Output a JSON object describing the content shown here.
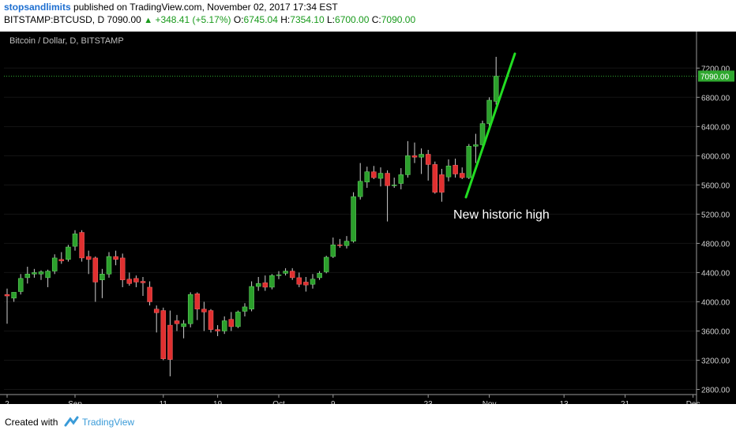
{
  "header": {
    "author": "stopsandlimits",
    "published_text": "published on TradingView.com, November 02, 2017 17:34 EST",
    "symbol": "BITSTAMP:BTCUSD, D",
    "last_price": "7090.00",
    "change": "+348.41 (+5.17%)",
    "o_label": "O:",
    "o_value": "6745.04",
    "h_label": "H:",
    "h_value": "7354.10",
    "l_label": "L:",
    "l_value": "6700.00",
    "c_label": "C:",
    "c_value": "7090.00"
  },
  "chart_title": "Bitcoin / Dollar, D, BITSTAMP",
  "annotation": "New historic high",
  "footer": {
    "created_with": "Created with",
    "brand": "TradingView"
  },
  "colors": {
    "background": "#000000",
    "up": "#2ca02c",
    "down": "#e03030",
    "wick": "#cfcfcf",
    "trendline": "#22dd22",
    "price_line": "#2fa82f"
  },
  "chart_data": {
    "type": "candlestick",
    "title": "Bitcoin / Dollar, D, BITSTAMP",
    "y_ticks": [
      "7200.00",
      "6800.00",
      "6400.00",
      "6000.00",
      "5600.00",
      "5200.00",
      "4800.00",
      "4400.00",
      "4000.00",
      "3600.00",
      "3200.00",
      "2800.00"
    ],
    "x_ticks": [
      "2",
      "Sep",
      "11",
      "19",
      "Oct",
      "9",
      "23",
      "Nov",
      "13",
      "21",
      "Dec"
    ],
    "current_price_label": "7090.00",
    "ylim": [
      2730,
      7700
    ],
    "candles": [
      {
        "o": 4100,
        "h": 4180,
        "l": 3700,
        "c": 4080
      },
      {
        "o": 4050,
        "h": 4130,
        "l": 4000,
        "c": 4130
      },
      {
        "o": 4140,
        "h": 4380,
        "l": 4100,
        "c": 4320
      },
      {
        "o": 4330,
        "h": 4480,
        "l": 4250,
        "c": 4380
      },
      {
        "o": 4380,
        "h": 4450,
        "l": 4330,
        "c": 4400
      },
      {
        "o": 4380,
        "h": 4430,
        "l": 4300,
        "c": 4410
      },
      {
        "o": 4330,
        "h": 4440,
        "l": 4200,
        "c": 4420
      },
      {
        "o": 4420,
        "h": 4650,
        "l": 4380,
        "c": 4600
      },
      {
        "o": 4580,
        "h": 4680,
        "l": 4520,
        "c": 4560
      },
      {
        "o": 4580,
        "h": 4780,
        "l": 4550,
        "c": 4750
      },
      {
        "o": 4760,
        "h": 4980,
        "l": 4700,
        "c": 4930
      },
      {
        "o": 4950,
        "h": 4980,
        "l": 4550,
        "c": 4600
      },
      {
        "o": 4620,
        "h": 4700,
        "l": 4380,
        "c": 4580
      },
      {
        "o": 4600,
        "h": 4620,
        "l": 4000,
        "c": 4270
      },
      {
        "o": 4300,
        "h": 4450,
        "l": 4050,
        "c": 4380
      },
      {
        "o": 4380,
        "h": 4680,
        "l": 4330,
        "c": 4620
      },
      {
        "o": 4620,
        "h": 4700,
        "l": 4500,
        "c": 4580
      },
      {
        "o": 4600,
        "h": 4660,
        "l": 4200,
        "c": 4300
      },
      {
        "o": 4310,
        "h": 4400,
        "l": 4220,
        "c": 4250
      },
      {
        "o": 4320,
        "h": 4360,
        "l": 4200,
        "c": 4270
      },
      {
        "o": 4280,
        "h": 4340,
        "l": 4080,
        "c": 4260
      },
      {
        "o": 4200,
        "h": 4280,
        "l": 3950,
        "c": 4000
      },
      {
        "o": 3900,
        "h": 3950,
        "l": 3580,
        "c": 3850
      },
      {
        "o": 3880,
        "h": 3920,
        "l": 3200,
        "c": 3220
      },
      {
        "o": 3680,
        "h": 3880,
        "l": 2980,
        "c": 3210
      },
      {
        "o": 3740,
        "h": 3820,
        "l": 3600,
        "c": 3700
      },
      {
        "o": 3660,
        "h": 3750,
        "l": 3500,
        "c": 3700
      },
      {
        "o": 3700,
        "h": 4130,
        "l": 3650,
        "c": 4100
      },
      {
        "o": 4110,
        "h": 4130,
        "l": 3750,
        "c": 3900
      },
      {
        "o": 3900,
        "h": 4000,
        "l": 3600,
        "c": 3860
      },
      {
        "o": 3880,
        "h": 3900,
        "l": 3580,
        "c": 3620
      },
      {
        "o": 3620,
        "h": 3680,
        "l": 3530,
        "c": 3600
      },
      {
        "o": 3600,
        "h": 3800,
        "l": 3560,
        "c": 3740
      },
      {
        "o": 3760,
        "h": 3860,
        "l": 3600,
        "c": 3660
      },
      {
        "o": 3660,
        "h": 3880,
        "l": 3640,
        "c": 3860
      },
      {
        "o": 3870,
        "h": 3980,
        "l": 3800,
        "c": 3930
      },
      {
        "o": 3900,
        "h": 4280,
        "l": 3870,
        "c": 4210
      },
      {
        "o": 4210,
        "h": 4340,
        "l": 4150,
        "c": 4250
      },
      {
        "o": 4260,
        "h": 4360,
        "l": 4150,
        "c": 4200
      },
      {
        "o": 4200,
        "h": 4380,
        "l": 4170,
        "c": 4360
      },
      {
        "o": 4370,
        "h": 4420,
        "l": 4310,
        "c": 4370
      },
      {
        "o": 4390,
        "h": 4460,
        "l": 4360,
        "c": 4420
      },
      {
        "o": 4420,
        "h": 4460,
        "l": 4300,
        "c": 4330
      },
      {
        "o": 4330,
        "h": 4400,
        "l": 4200,
        "c": 4240
      },
      {
        "o": 4270,
        "h": 4340,
        "l": 4140,
        "c": 4230
      },
      {
        "o": 4240,
        "h": 4380,
        "l": 4180,
        "c": 4310
      },
      {
        "o": 4330,
        "h": 4420,
        "l": 4300,
        "c": 4390
      },
      {
        "o": 4410,
        "h": 4630,
        "l": 4390,
        "c": 4610
      },
      {
        "o": 4620,
        "h": 4880,
        "l": 4600,
        "c": 4780
      },
      {
        "o": 4780,
        "h": 4860,
        "l": 4740,
        "c": 4770
      },
      {
        "o": 4770,
        "h": 4900,
        "l": 4730,
        "c": 4830
      },
      {
        "o": 4830,
        "h": 5500,
        "l": 4810,
        "c": 5440
      },
      {
        "o": 5440,
        "h": 5900,
        "l": 5400,
        "c": 5650
      },
      {
        "o": 5640,
        "h": 5850,
        "l": 5560,
        "c": 5780
      },
      {
        "o": 5780,
        "h": 5860,
        "l": 5680,
        "c": 5700
      },
      {
        "o": 5690,
        "h": 5840,
        "l": 5580,
        "c": 5760
      },
      {
        "o": 5760,
        "h": 5800,
        "l": 5100,
        "c": 5590
      },
      {
        "o": 5600,
        "h": 5700,
        "l": 5560,
        "c": 5600
      },
      {
        "o": 5620,
        "h": 5830,
        "l": 5540,
        "c": 5740
      },
      {
        "o": 5740,
        "h": 6200,
        "l": 5700,
        "c": 6000
      },
      {
        "o": 6000,
        "h": 6180,
        "l": 5900,
        "c": 5980
      },
      {
        "o": 5980,
        "h": 6100,
        "l": 5750,
        "c": 6020
      },
      {
        "o": 6020,
        "h": 6080,
        "l": 5660,
        "c": 5880
      },
      {
        "o": 5880,
        "h": 5920,
        "l": 5480,
        "c": 5500
      },
      {
        "o": 5740,
        "h": 5820,
        "l": 5370,
        "c": 5500
      },
      {
        "o": 5710,
        "h": 5950,
        "l": 5650,
        "c": 5860
      },
      {
        "o": 5870,
        "h": 5960,
        "l": 5700,
        "c": 5750
      },
      {
        "o": 5760,
        "h": 5840,
        "l": 5680,
        "c": 5700
      },
      {
        "o": 5700,
        "h": 6160,
        "l": 5680,
        "c": 6130
      },
      {
        "o": 6130,
        "h": 6300,
        "l": 5900,
        "c": 6150
      },
      {
        "o": 6150,
        "h": 6480,
        "l": 6100,
        "c": 6440
      },
      {
        "o": 6440,
        "h": 6800,
        "l": 6380,
        "c": 6760
      },
      {
        "o": 6745,
        "h": 7354,
        "l": 6700,
        "c": 7090
      }
    ]
  }
}
